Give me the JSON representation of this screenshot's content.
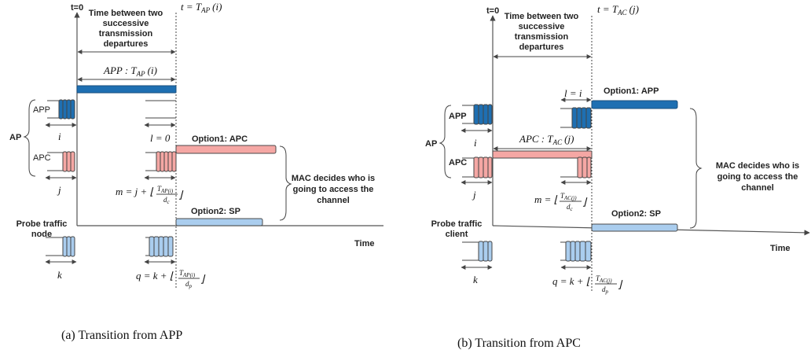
{
  "colors": {
    "app": "#1e6fb2",
    "apc": "#f5a7a4",
    "sp": "#aacdee",
    "outline": "#4a4a4a"
  },
  "panel_a": {
    "t0": "t=0",
    "time_between_1": "Time between two",
    "time_between_2": "successive",
    "time_between_3": "transmission",
    "time_between_4": "departures",
    "t_label": "t = T",
    "t_sub": "AP",
    "t_arg": "(i)",
    "app_label": "APP : T",
    "app_sub": "AP",
    "app_arg": "(i)",
    "ap_label": "AP",
    "app_queue": "APP",
    "apc_queue": "APC",
    "i": "i",
    "j": "j",
    "l_eq": "l = 0",
    "m_eq": "m = j + ⌊",
    "m_num": "T",
    "m_num_sub": "AP(i)",
    "m_den": "d",
    "m_den_sub": "c",
    "option1": "Option1: APC",
    "option2": "Option2: SP",
    "mac_1": "MAC decides who is",
    "mac_2": "going to access the",
    "mac_3": "channel",
    "probe_1": "Probe traffic",
    "probe_2": "node",
    "k": "k",
    "q_eq": "q = k + ⌊",
    "q_num": "T",
    "q_num_sub": "AP(i)",
    "q_den": "d",
    "q_den_sub": "p",
    "time": "Time",
    "caption": "(a)  Transition from APP"
  },
  "panel_b": {
    "t0": "t=0",
    "time_between_1": "Time between two",
    "time_between_2": "successive",
    "time_between_3": "transmission",
    "time_between_4": "departures",
    "t_label": "t = T",
    "t_sub": "AC",
    "t_arg": "(j)",
    "apc_label": "APC : T",
    "apc_sub": "AC",
    "apc_arg": "(j)",
    "ap_label": "AP",
    "app_queue": "APP",
    "apc_queue": "APC",
    "i": "i",
    "j": "j",
    "l_eq": "l = i",
    "m_eq": "m = ⌊",
    "m_num": "T",
    "m_num_sub": "AC(j)",
    "m_den": "d",
    "m_den_sub": "c",
    "option1": "Option1: APP",
    "option2": "Option2: SP",
    "mac_1": "MAC decides who is",
    "mac_2": "going to access the",
    "mac_3": "channel",
    "probe_1": "Probe traffic",
    "probe_2": "client",
    "k": "k",
    "q_eq": "q = k + ⌊",
    "q_num": "T",
    "q_num_sub": "AC(j)",
    "q_den": "d",
    "q_den_sub": "p",
    "time": "Time",
    "caption": "(b)  Transition from APC"
  }
}
